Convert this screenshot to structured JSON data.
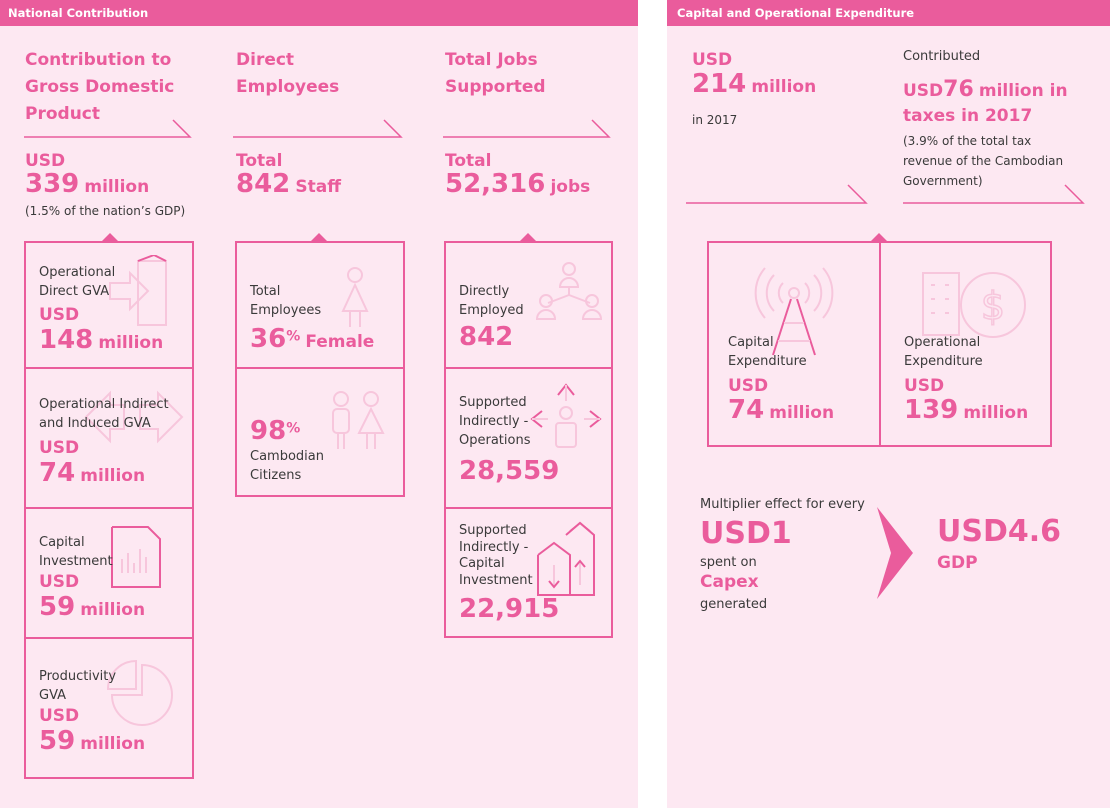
{
  "national": {
    "bar_title": "National Contribution",
    "gdp": {
      "heading": [
        "Contribution to",
        "Gross Domestic",
        "Product"
      ],
      "currency": "USD",
      "value": "339",
      "unit": "million",
      "note": "(1.5% of the nation’s GDP)",
      "items": [
        {
          "label1": "Operational",
          "label2": "Direct GVA",
          "currency": "USD",
          "value": "148",
          "unit": "million",
          "icon": "exit-door-icon"
        },
        {
          "label1": "Operational Indirect",
          "label2": "and Induced GVA",
          "currency": "USD",
          "value": "74",
          "unit": "million",
          "icon": "double-arrow-icon"
        },
        {
          "label1": "Capital",
          "label2": "Investment",
          "currency": "USD",
          "value": "59",
          "unit": "million",
          "icon": "bar-chart-document-icon"
        },
        {
          "label1": "Productivity",
          "label2": "GVA",
          "currency": "USD",
          "value": "59",
          "unit": "million",
          "icon": "pie-chart-icon"
        }
      ]
    },
    "employees": {
      "heading": [
        "Direct",
        "Employees"
      ],
      "prefix": "Total",
      "value": "842",
      "unit": "Staff",
      "items": [
        {
          "label1": "Total",
          "label2": "Employees",
          "value": "36",
          "sup": "%",
          "unit": "Female",
          "icon": "female-person-icon"
        },
        {
          "value": "98",
          "sup": "%",
          "label1": "Cambodian",
          "label2": "Citizens",
          "icon": "two-people-icon"
        }
      ]
    },
    "jobs": {
      "heading": [
        "Total Jobs",
        "Supported"
      ],
      "prefix": "Total",
      "value": "52,316",
      "unit": "jobs",
      "items": [
        {
          "label1": "Directly",
          "label2": "Employed",
          "value": "842",
          "icon": "network-people-icon"
        },
        {
          "label1": "Supported",
          "label2": "Indirectly -",
          "label3": "Operations",
          "value": "28,559",
          "icon": "person-arrows-icon"
        },
        {
          "label1": "Supported",
          "label2": "Indirectly -",
          "label3": "Capital",
          "label4": "Investment",
          "value": "22,915",
          "icon": "buildings-arrows-icon"
        }
      ]
    }
  },
  "capex": {
    "bar_title": "Capital and Operational Expenditure",
    "spend": {
      "currency": "USD",
      "value": "214",
      "unit": "million",
      "note": "in 2017"
    },
    "taxes": {
      "intro": "Contributed",
      "currency": "USD",
      "value": "76",
      "line1_rest": "million in",
      "line2": "taxes in 2017",
      "note1": "(3.9% of the total tax",
      "note2": "revenue of the Cambodian",
      "note3": "Government)"
    },
    "items": [
      {
        "label1": "Capital",
        "label2": "Expenditure",
        "currency": "USD",
        "value": "74",
        "unit": "million",
        "icon": "radio-tower-icon"
      },
      {
        "label1": "Operational",
        "label2": "Expenditure",
        "currency": "USD",
        "value": "139",
        "unit": "million",
        "icon": "building-dollar-icon"
      }
    ],
    "multiplier": {
      "intro": "Multiplier effect for every",
      "input": "USD1",
      "spent": "spent on",
      "capex": "Capex",
      "generated": "generated",
      "result": "USD4.6",
      "result_unit": "GDP"
    }
  },
  "colors": {
    "accent": "#ea5c9c",
    "panel_bg": "#fde8f2",
    "icon_light": "#f7c6dc"
  }
}
